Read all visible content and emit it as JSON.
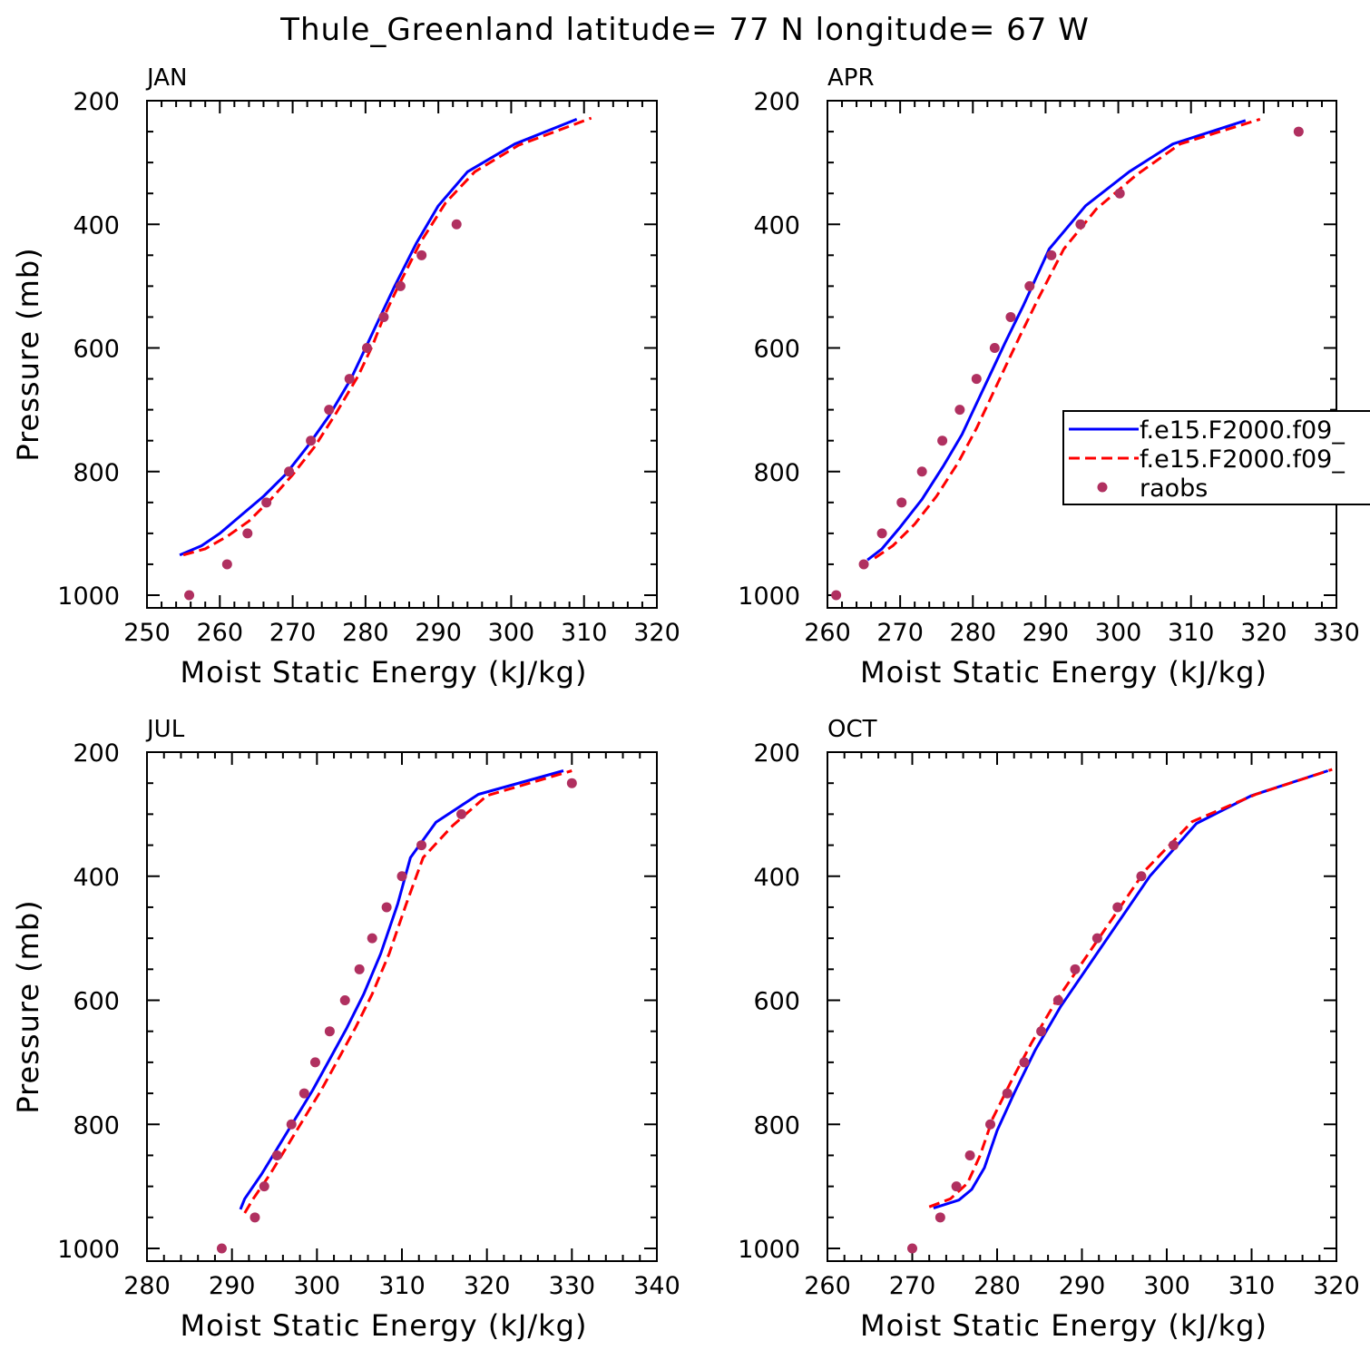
{
  "title": "Thule_Greenland  latitude= 77 N longitude= 67 W",
  "colors": {
    "model1": "#0000ff",
    "model2": "#ff0000",
    "raobs": "#b03060",
    "axis": "#000000"
  },
  "legend": {
    "placement": "right-middle of APR panel",
    "entries": [
      {
        "label": "f.e15.F2000.f09_",
        "style": "solid",
        "color": "#0000ff"
      },
      {
        "label": "f.e15.F2000.f09_",
        "style": "dashed",
        "color": "#ff0000"
      },
      {
        "label": "raobs",
        "style": "marker",
        "color": "#b03060"
      }
    ]
  },
  "chart_data": [
    {
      "type": "line",
      "panel": "JAN",
      "xlabel": "Moist Static Energy (kJ/kg)",
      "ylabel": "Pressure (mb)",
      "xlim": [
        250,
        320
      ],
      "ylim": [
        1000,
        200
      ],
      "xticks": [
        250,
        260,
        270,
        280,
        290,
        300,
        310,
        320
      ],
      "yticks": [
        200,
        400,
        600,
        800,
        1000
      ],
      "series": [
        {
          "color": "#0000ff",
          "dash": false,
          "x": [
            254.5,
            257.5,
            260,
            263,
            266,
            269,
            272,
            275,
            278,
            280,
            282,
            284,
            287,
            290,
            294,
            300.5,
            309
          ],
          "y": [
            935,
            920,
            900,
            870,
            840,
            805,
            760,
            710,
            650,
            600,
            550,
            500,
            430,
            370,
            315,
            270,
            230
          ]
        },
        {
          "color": "#ff0000",
          "dash": true,
          "x": [
            255,
            258,
            261,
            264,
            267,
            270,
            273,
            276,
            279,
            281,
            282.5,
            284.5,
            287.5,
            291,
            295,
            301,
            311
          ],
          "y": [
            935,
            925,
            905,
            880,
            845,
            805,
            760,
            705,
            645,
            595,
            550,
            500,
            430,
            365,
            315,
            272,
            228
          ]
        }
      ],
      "points": {
        "x": [
          255.8,
          261,
          263.8,
          266.4,
          269.5,
          272.5,
          275,
          277.8,
          280.2,
          282.5,
          284.8,
          287.7,
          292.5
        ],
        "y": [
          1000,
          950,
          900,
          850,
          800,
          750,
          700,
          650,
          600,
          550,
          500,
          450,
          400
        ]
      }
    },
    {
      "type": "line",
      "panel": "APR",
      "xlabel": "Moist Static Energy (kJ/kg)",
      "ylabel": "",
      "xlim": [
        260,
        330
      ],
      "ylim": [
        1000,
        200
      ],
      "xticks": [
        260,
        270,
        280,
        290,
        300,
        310,
        320,
        330
      ],
      "yticks": [
        200,
        400,
        600,
        800,
        1000
      ],
      "series": [
        {
          "color": "#0000ff",
          "dash": false,
          "x": [
            265.5,
            267.5,
            270,
            273,
            276,
            278.5,
            280.5,
            282.5,
            284.5,
            287,
            290.5,
            295.5,
            301.5,
            307.5,
            317.5
          ],
          "y": [
            943,
            925,
            890,
            845,
            790,
            740,
            690,
            640,
            590,
            530,
            440,
            370,
            315,
            270,
            232
          ]
        },
        {
          "color": "#ff0000",
          "dash": true,
          "x": [
            266.5,
            269,
            272,
            275,
            278,
            280.5,
            282.5,
            284.5,
            286.5,
            289,
            292.5,
            297,
            302.5,
            308.5,
            319.5
          ],
          "y": [
            940,
            920,
            885,
            840,
            785,
            730,
            680,
            630,
            580,
            520,
            440,
            375,
            320,
            270,
            230
          ]
        }
      ],
      "points": {
        "x": [
          261.2,
          265,
          267.5,
          270.2,
          273,
          275.8,
          278.2,
          280.5,
          283,
          285.2,
          287.8,
          290.8,
          294.8,
          300.2,
          324.8
        ],
        "y": [
          1000,
          950,
          900,
          850,
          800,
          750,
          700,
          650,
          600,
          550,
          500,
          450,
          400,
          350,
          250
        ]
      }
    },
    {
      "type": "line",
      "panel": "JUL",
      "xlabel": "Moist Static Energy (kJ/kg)",
      "ylabel": "Pressure (mb)",
      "xlim": [
        280,
        340
      ],
      "ylim": [
        1000,
        200
      ],
      "xticks": [
        280,
        290,
        300,
        310,
        320,
        330,
        340
      ],
      "yticks": [
        200,
        400,
        600,
        800,
        1000
      ],
      "series": [
        {
          "color": "#0000ff",
          "dash": false,
          "x": [
            291,
            291.5,
            293.5,
            295.5,
            297.5,
            299.5,
            301.5,
            303.5,
            305.5,
            307.5,
            309.5,
            311,
            314,
            319,
            329
          ],
          "y": [
            937,
            920,
            880,
            835,
            790,
            745,
            695,
            645,
            590,
            525,
            445,
            370,
            313,
            268,
            230
          ]
        },
        {
          "color": "#ff0000",
          "dash": true,
          "x": [
            291.5,
            292.5,
            294.5,
            296.5,
            298.5,
            300.5,
            302.5,
            304.5,
            306.5,
            308.5,
            310.5,
            312.5,
            316,
            320,
            330
          ],
          "y": [
            943,
            920,
            880,
            835,
            790,
            745,
            695,
            645,
            590,
            525,
            445,
            370,
            318,
            270,
            230
          ]
        }
      ],
      "points": {
        "x": [
          288.8,
          292.7,
          293.8,
          295.3,
          297,
          298.5,
          299.8,
          301.5,
          303.3,
          305,
          306.5,
          308.2,
          310,
          312.3,
          317,
          330
        ],
        "y": [
          1000,
          950,
          900,
          850,
          800,
          750,
          700,
          650,
          600,
          550,
          500,
          450,
          400,
          350,
          300,
          250
        ]
      }
    },
    {
      "type": "line",
      "panel": "OCT",
      "xlabel": "Moist Static Energy (kJ/kg)",
      "ylabel": "",
      "xlim": [
        260,
        320
      ],
      "ylim": [
        1000,
        200
      ],
      "xticks": [
        260,
        270,
        280,
        290,
        300,
        310,
        320
      ],
      "yticks": [
        200,
        400,
        600,
        800,
        1000
      ],
      "series": [
        {
          "color": "#0000ff",
          "dash": false,
          "x": [
            272.5,
            275.5,
            277,
            278.5,
            280,
            282,
            284.5,
            287.5,
            291,
            294.5,
            298,
            303.5,
            310,
            319
          ],
          "y": [
            935,
            922,
            905,
            870,
            810,
            750,
            680,
            610,
            540,
            470,
            400,
            315,
            270,
            230
          ]
        },
        {
          "color": "#ff0000",
          "dash": true,
          "x": [
            272,
            274.5,
            276.5,
            278,
            279.5,
            281.5,
            284,
            287,
            290.5,
            294,
            297.5,
            303,
            310.5,
            319.5
          ],
          "y": [
            933,
            920,
            895,
            850,
            790,
            735,
            670,
            600,
            530,
            460,
            390,
            312,
            268,
            228
          ]
        }
      ],
      "points": {
        "x": [
          270,
          273.3,
          275.2,
          276.8,
          279.2,
          281.2,
          283.2,
          285.2,
          287.2,
          289.2,
          291.8,
          294.2,
          297,
          300.8
        ],
        "y": [
          1000,
          950,
          900,
          850,
          800,
          750,
          700,
          650,
          600,
          550,
          500,
          450,
          400,
          350
        ]
      }
    }
  ]
}
